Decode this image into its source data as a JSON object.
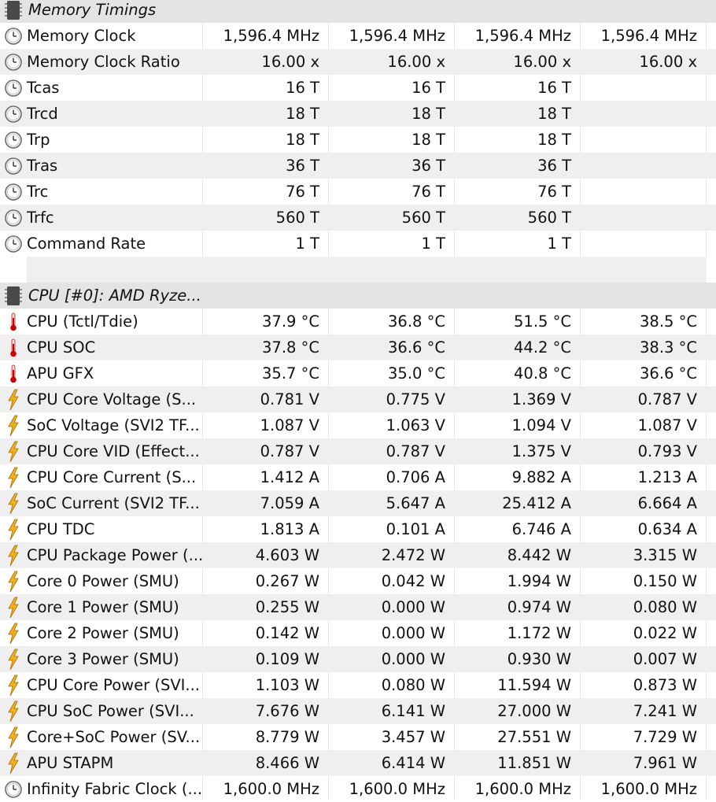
{
  "sections": [
    {
      "title": "Memory Timings",
      "icon": "chip-icon",
      "rows": [
        {
          "label": "Memory Clock",
          "icon": "clock-icon",
          "values": [
            "1,596.4 MHz",
            "1,596.4 MHz",
            "1,596.4 MHz",
            "1,596.4 MHz"
          ]
        },
        {
          "label": "Memory Clock Ratio",
          "icon": "clock-icon",
          "values": [
            "16.00 x",
            "16.00 x",
            "16.00 x",
            "16.00 x"
          ]
        },
        {
          "label": "Tcas",
          "icon": "clock-icon",
          "values": [
            "16 T",
            "16 T",
            "16 T",
            ""
          ]
        },
        {
          "label": "Trcd",
          "icon": "clock-icon",
          "values": [
            "18 T",
            "18 T",
            "18 T",
            ""
          ]
        },
        {
          "label": "Trp",
          "icon": "clock-icon",
          "values": [
            "18 T",
            "18 T",
            "18 T",
            ""
          ]
        },
        {
          "label": "Tras",
          "icon": "clock-icon",
          "values": [
            "36 T",
            "36 T",
            "36 T",
            ""
          ]
        },
        {
          "label": "Trc",
          "icon": "clock-icon",
          "values": [
            "76 T",
            "76 T",
            "76 T",
            ""
          ]
        },
        {
          "label": "Trfc",
          "icon": "clock-icon",
          "values": [
            "560 T",
            "560 T",
            "560 T",
            ""
          ]
        },
        {
          "label": "Command Rate",
          "icon": "clock-icon",
          "values": [
            "1 T",
            "1 T",
            "1 T",
            ""
          ]
        }
      ]
    },
    {
      "title": "CPU [#0]: AMD Ryze...",
      "icon": "chip-icon",
      "rows": [
        {
          "label": "CPU (Tctl/Tdie)",
          "icon": "thermometer-icon",
          "values": [
            "37.9 °C",
            "36.8 °C",
            "51.5 °C",
            "38.5 °C"
          ]
        },
        {
          "label": "CPU SOC",
          "icon": "thermometer-icon",
          "values": [
            "37.8 °C",
            "36.6 °C",
            "44.2 °C",
            "38.3 °C"
          ]
        },
        {
          "label": "APU GFX",
          "icon": "thermometer-icon",
          "values": [
            "35.7 °C",
            "35.0 °C",
            "40.8 °C",
            "36.6 °C"
          ]
        },
        {
          "label": "CPU Core Voltage (S...",
          "icon": "lightning-icon",
          "values": [
            "0.781 V",
            "0.775 V",
            "1.369 V",
            "0.787 V"
          ]
        },
        {
          "label": "SoC Voltage (SVI2 TF...",
          "icon": "lightning-icon",
          "values": [
            "1.087 V",
            "1.063 V",
            "1.094 V",
            "1.087 V"
          ]
        },
        {
          "label": "CPU Core VID (Effect...",
          "icon": "lightning-icon",
          "values": [
            "0.787 V",
            "0.787 V",
            "1.375 V",
            "0.793 V"
          ]
        },
        {
          "label": "CPU Core Current (S...",
          "icon": "lightning-icon",
          "values": [
            "1.412 A",
            "0.706 A",
            "9.882 A",
            "1.213 A"
          ]
        },
        {
          "label": "SoC Current (SVI2 TF...",
          "icon": "lightning-icon",
          "values": [
            "7.059 A",
            "5.647 A",
            "25.412 A",
            "6.664 A"
          ]
        },
        {
          "label": "CPU TDC",
          "icon": "lightning-icon",
          "values": [
            "1.813 A",
            "0.101 A",
            "6.746 A",
            "0.634 A"
          ]
        },
        {
          "label": "CPU Package Power (...",
          "icon": "lightning-icon",
          "values": [
            "4.603 W",
            "2.472 W",
            "8.442 W",
            "3.315 W"
          ]
        },
        {
          "label": "Core 0 Power (SMU)",
          "icon": "lightning-icon",
          "values": [
            "0.267 W",
            "0.042 W",
            "1.994 W",
            "0.150 W"
          ]
        },
        {
          "label": "Core 1 Power (SMU)",
          "icon": "lightning-icon",
          "values": [
            "0.255 W",
            "0.000 W",
            "0.974 W",
            "0.080 W"
          ]
        },
        {
          "label": "Core 2 Power (SMU)",
          "icon": "lightning-icon",
          "values": [
            "0.142 W",
            "0.000 W",
            "1.172 W",
            "0.022 W"
          ]
        },
        {
          "label": "Core 3 Power (SMU)",
          "icon": "lightning-icon",
          "values": [
            "0.109 W",
            "0.000 W",
            "0.930 W",
            "0.007 W"
          ]
        },
        {
          "label": "CPU Core Power (SVI...",
          "icon": "lightning-icon",
          "values": [
            "1.103 W",
            "0.080 W",
            "11.594 W",
            "0.873 W"
          ]
        },
        {
          "label": "CPU SoC Power (SVI...",
          "icon": "lightning-icon",
          "values": [
            "7.676 W",
            "6.141 W",
            "27.000 W",
            "7.241 W"
          ]
        },
        {
          "label": "Core+SoC Power (SV...",
          "icon": "lightning-icon",
          "values": [
            "8.779 W",
            "3.457 W",
            "27.551 W",
            "7.729 W"
          ]
        },
        {
          "label": "APU STAPM",
          "icon": "lightning-icon",
          "values": [
            "8.466 W",
            "6.414 W",
            "11.851 W",
            "7.961 W"
          ]
        },
        {
          "label": "Infinity Fabric Clock (...",
          "icon": "clock-icon",
          "values": [
            "1,600.0 MHz",
            "1,600.0 MHz",
            "1,600.0 MHz",
            "1,600.0 MHz"
          ]
        }
      ]
    }
  ]
}
